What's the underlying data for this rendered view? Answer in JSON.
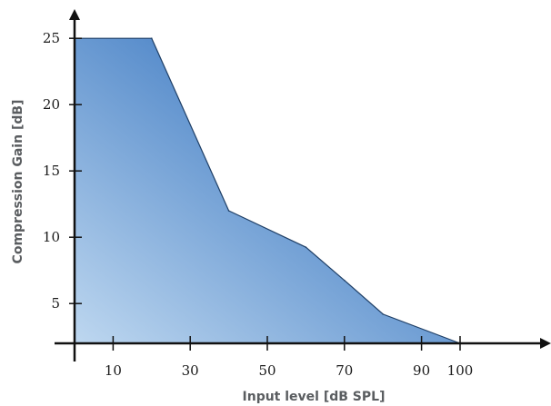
{
  "chart_data": {
    "type": "area",
    "title": "",
    "xlabel": "Input level [dB SPL]",
    "ylabel": "Compression Gain [dB]",
    "x": [
      0,
      20,
      40,
      60,
      70,
      80,
      100
    ],
    "y": [
      25,
      25,
      12,
      9.25,
      6.75,
      4.2,
      2
    ],
    "xlim": [
      0,
      110
    ],
    "ylim": [
      2,
      27.5
    ],
    "x_ticks": [
      10,
      30,
      50,
      70,
      90,
      100
    ],
    "y_ticks": [
      5,
      10,
      15,
      20,
      25
    ],
    "grid": false,
    "legend": "none",
    "colors": {
      "fill_dark": "#2f6fbd",
      "fill_light": "#c7def3",
      "line": "#1f3f66",
      "axis": "#111111"
    }
  }
}
